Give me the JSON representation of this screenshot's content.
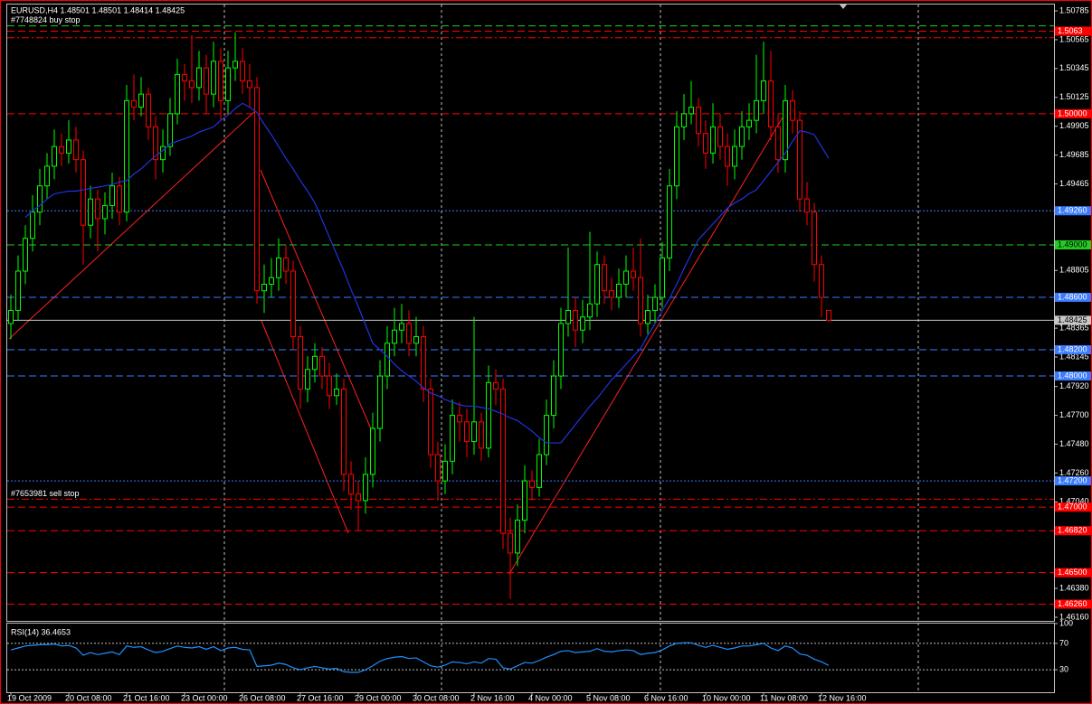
{
  "chart_data": {
    "type": "candlestick",
    "title": "EURUSD,H4 1.48501 1.48501 1.48414 1.48425",
    "categories": [
      "19 Oct 2009",
      null,
      null,
      null,
      null,
      null,
      null,
      null,
      "20 Oct 08:00",
      null,
      null,
      null,
      null,
      null,
      null,
      null,
      "21 Oct 16:00",
      null,
      null,
      null,
      null,
      null,
      null,
      null,
      "23 Oct 00:00",
      null,
      null,
      null,
      null,
      null,
      null,
      null,
      "26 Oct 08:00",
      null,
      null,
      null,
      null,
      null,
      null,
      null,
      "27 Oct 16:00",
      null,
      null,
      null,
      null,
      null,
      null,
      null,
      "29 Oct 00:00",
      null,
      null,
      null,
      null,
      null,
      null,
      null,
      "30 Oct 08:00",
      null,
      null,
      null,
      null,
      null,
      null,
      null,
      "2 Nov 16:00",
      null,
      null,
      null,
      null,
      null,
      null,
      null,
      "4 Nov 00:00",
      null,
      null,
      null,
      null,
      null,
      null,
      null,
      "5 Nov 08:00",
      null,
      null,
      null,
      null,
      null,
      null,
      null,
      "6 Nov 16:00",
      null,
      null,
      null,
      null,
      null,
      null,
      null,
      "10 Nov 00:00",
      null,
      null,
      null,
      null,
      null,
      null,
      null,
      "11 Nov 08:00",
      null,
      null,
      null,
      null,
      null,
      null,
      null,
      "12 Nov 16:00",
      null
    ],
    "up_color": "#00ff00",
    "down_color": "#ff0000",
    "candles": [
      [
        1.484,
        1.4862,
        1.4828,
        1.485
      ],
      [
        1.485,
        1.4892,
        1.4842,
        1.488
      ],
      [
        1.488,
        1.4915,
        1.487,
        1.4905
      ],
      [
        1.4905,
        1.4938,
        1.4895,
        1.4925
      ],
      [
        1.4925,
        1.4958,
        1.4915,
        1.4945
      ],
      [
        1.4945,
        1.497,
        1.4935,
        1.496
      ],
      [
        1.496,
        1.4988,
        1.495,
        1.4975
      ],
      [
        1.4975,
        1.4985,
        1.496,
        1.497
      ],
      [
        1.497,
        1.4995,
        1.4962,
        1.498
      ],
      [
        1.498,
        1.499,
        1.4955,
        1.4965
      ],
      [
        1.4965,
        1.4972,
        1.4885,
        1.4915
      ],
      [
        1.4915,
        1.4945,
        1.4905,
        1.4935
      ],
      [
        1.4935,
        1.4942,
        1.4895,
        1.492
      ],
      [
        1.492,
        1.494,
        1.4908,
        1.493
      ],
      [
        1.493,
        1.4955,
        1.492,
        1.4945
      ],
      [
        1.4945,
        1.4952,
        1.4915,
        1.4925
      ],
      [
        1.4925,
        1.5022,
        1.4918,
        1.501
      ],
      [
        1.501,
        1.503,
        1.4995,
        1.5005
      ],
      [
        1.5005,
        1.5028,
        1.4998,
        1.5015
      ],
      [
        1.5015,
        1.502,
        1.498,
        1.499
      ],
      [
        1.499,
        1.4998,
        1.495,
        1.4965
      ],
      [
        1.4965,
        1.4988,
        1.4955,
        1.4975
      ],
      [
        1.4975,
        1.5012,
        1.4968,
        1.5
      ],
      [
        1.5,
        1.5042,
        1.4992,
        1.503
      ],
      [
        1.503,
        1.5038,
        1.501,
        1.5025
      ],
      [
        1.5025,
        1.506,
        1.5008,
        1.502
      ],
      [
        1.502,
        1.5048,
        1.501,
        1.5035
      ],
      [
        1.5035,
        1.5045,
        1.5,
        1.5015
      ],
      [
        1.5015,
        1.5055,
        1.5005,
        1.504
      ],
      [
        1.504,
        1.505,
        1.4995,
        1.501
      ],
      [
        1.501,
        1.5048,
        1.5,
        1.5035
      ],
      [
        1.5035,
        1.5062,
        1.5025,
        1.504
      ],
      [
        1.504,
        1.505,
        1.5015,
        1.5025
      ],
      [
        1.5025,
        1.5038,
        1.5005,
        1.502
      ],
      [
        1.502,
        1.5028,
        1.4855,
        1.4865
      ],
      [
        1.4865,
        1.4885,
        1.4848,
        1.487
      ],
      [
        1.487,
        1.489,
        1.486,
        1.4875
      ],
      [
        1.4875,
        1.4905,
        1.4865,
        1.489
      ],
      [
        1.489,
        1.49,
        1.487,
        1.488
      ],
      [
        1.488,
        1.4888,
        1.482,
        1.483
      ],
      [
        1.483,
        1.4838,
        1.4775,
        1.479
      ],
      [
        1.479,
        1.4815,
        1.478,
        1.4805
      ],
      [
        1.4805,
        1.4825,
        1.4795,
        1.4815
      ],
      [
        1.4815,
        1.4822,
        1.479,
        1.48
      ],
      [
        1.48,
        1.481,
        1.4775,
        1.4785
      ],
      [
        1.4785,
        1.4802,
        1.4778,
        1.479
      ],
      [
        1.479,
        1.4798,
        1.4712,
        1.4725
      ],
      [
        1.4725,
        1.4735,
        1.4698,
        1.471
      ],
      [
        1.471,
        1.472,
        1.4682,
        1.4705
      ],
      [
        1.4705,
        1.4738,
        1.4695,
        1.4725
      ],
      [
        1.4725,
        1.4772,
        1.4715,
        1.476
      ],
      [
        1.476,
        1.4812,
        1.475,
        1.48
      ],
      [
        1.48,
        1.4838,
        1.479,
        1.4825
      ],
      [
        1.4825,
        1.4852,
        1.4815,
        1.4835
      ],
      [
        1.4835,
        1.4855,
        1.4825,
        1.484
      ],
      [
        1.484,
        1.485,
        1.4815,
        1.4825
      ],
      [
        1.4825,
        1.4845,
        1.4815,
        1.483
      ],
      [
        1.483,
        1.4838,
        1.478,
        1.479
      ],
      [
        1.479,
        1.4798,
        1.473,
        1.474
      ],
      [
        1.474,
        1.475,
        1.4705,
        1.472
      ],
      [
        1.472,
        1.4748,
        1.471,
        1.4735
      ],
      [
        1.4735,
        1.4782,
        1.4725,
        1.477
      ],
      [
        1.477,
        1.478,
        1.475,
        1.4765
      ],
      [
        1.4765,
        1.4775,
        1.4738,
        1.475
      ],
      [
        1.475,
        1.4845,
        1.474,
        1.4765
      ],
      [
        1.4765,
        1.4772,
        1.4735,
        1.4745
      ],
      [
        1.4745,
        1.4808,
        1.4738,
        1.4795
      ],
      [
        1.4795,
        1.4805,
        1.4778,
        1.479
      ],
      [
        1.479,
        1.4798,
        1.4668,
        1.468
      ],
      [
        1.468,
        1.4692,
        1.463,
        1.4665
      ],
      [
        1.4665,
        1.4702,
        1.4655,
        1.469
      ],
      [
        1.469,
        1.4732,
        1.468,
        1.472
      ],
      [
        1.472,
        1.4728,
        1.4705,
        1.4715
      ],
      [
        1.4715,
        1.4752,
        1.4708,
        1.474
      ],
      [
        1.474,
        1.4782,
        1.4732,
        1.477
      ],
      [
        1.477,
        1.4812,
        1.476,
        1.48
      ],
      [
        1.48,
        1.4852,
        1.479,
        1.484
      ],
      [
        1.484,
        1.4898,
        1.483,
        1.485
      ],
      [
        1.485,
        1.486,
        1.4822,
        1.4835
      ],
      [
        1.4835,
        1.4858,
        1.4825,
        1.4845
      ],
      [
        1.4845,
        1.491,
        1.4835,
        1.4855
      ],
      [
        1.4855,
        1.4895,
        1.4845,
        1.4885
      ],
      [
        1.4885,
        1.4892,
        1.4855,
        1.4865
      ],
      [
        1.4865,
        1.4875,
        1.485,
        1.486
      ],
      [
        1.486,
        1.4882,
        1.4852,
        1.487
      ],
      [
        1.487,
        1.4892,
        1.486,
        1.488
      ],
      [
        1.488,
        1.4898,
        1.4865,
        1.4875
      ],
      [
        1.4875,
        1.4905,
        1.483,
        1.484
      ],
      [
        1.484,
        1.4862,
        1.4832,
        1.485
      ],
      [
        1.485,
        1.487,
        1.484,
        1.486
      ],
      [
        1.486,
        1.4902,
        1.4852,
        1.489
      ],
      [
        1.489,
        1.4958,
        1.488,
        1.4945
      ],
      [
        1.4945,
        1.5002,
        1.4935,
        1.499
      ],
      [
        1.499,
        1.5015,
        1.498,
        1.5
      ],
      [
        1.5,
        1.5025,
        1.4992,
        1.5005
      ],
      [
        1.5005,
        1.5012,
        1.4975,
        1.4985
      ],
      [
        1.4985,
        1.4995,
        1.4958,
        1.497
      ],
      [
        1.497,
        1.5008,
        1.4962,
        1.499
      ],
      [
        1.499,
        1.5,
        1.4965,
        1.4975
      ],
      [
        1.4975,
        1.4985,
        1.4945,
        1.496
      ],
      [
        1.496,
        1.4988,
        1.495,
        1.4975
      ],
      [
        1.4975,
        1.5002,
        1.4965,
        1.499
      ],
      [
        1.499,
        1.5008,
        1.498,
        1.4995
      ],
      [
        1.4995,
        1.5045,
        1.4985,
        1.501
      ],
      [
        1.501,
        1.5055,
        1.5,
        1.5025
      ],
      [
        1.5025,
        1.5048,
        1.498,
        1.499
      ],
      [
        1.499,
        1.5,
        1.4955,
        1.4965
      ],
      [
        1.4965,
        1.5022,
        1.4955,
        1.501
      ],
      [
        1.501,
        1.5018,
        1.4985,
        1.4995
      ],
      [
        1.4995,
        1.5002,
        1.4925,
        1.4935
      ],
      [
        1.4935,
        1.4948,
        1.4915,
        1.4925
      ],
      [
        1.4925,
        1.4932,
        1.4872,
        1.4885
      ],
      [
        1.4885,
        1.4892,
        1.4845,
        1.486
      ],
      [
        1.48501,
        1.48501,
        1.48414,
        1.48425
      ]
    ],
    "ma": {
      "color": "#2233dd",
      "values": [
        null,
        null,
        1.4921,
        1.4926,
        1.493,
        1.4935,
        1.4939,
        1.494,
        1.4941,
        1.4941,
        1.4942,
        1.4943,
        1.4944,
        1.4945,
        1.4946,
        1.4948,
        1.4949,
        1.4954,
        1.4958,
        1.4963,
        1.4968,
        1.4972,
        1.4977,
        1.4979,
        1.4981,
        1.4983,
        1.4986,
        1.4988,
        1.499,
        1.4995,
        1.4999,
        1.5004,
        1.5008,
        1.5005,
        1.5001,
        1.4992,
        1.4984,
        1.4975,
        1.4966,
        1.4958,
        1.4949,
        1.4941,
        1.4932,
        1.4919,
        1.4906,
        1.4893,
        1.488,
        1.4866,
        1.4853,
        1.4839,
        1.4825,
        1.482,
        1.4815,
        1.4809,
        1.4804,
        1.48,
        1.4796,
        1.4791,
        1.4787,
        1.4785,
        1.4782,
        1.478,
        1.4778,
        1.4777,
        1.4777,
        1.4776,
        1.4775,
        1.4773,
        1.4771,
        1.4768,
        1.4766,
        1.4762,
        1.4758,
        1.4753,
        1.4749,
        1.4749,
        1.4749,
        1.4756,
        1.4763,
        1.477,
        1.4777,
        1.4783,
        1.479,
        1.4797,
        1.4803,
        1.4809,
        1.4815,
        1.4821,
        1.4831,
        1.484,
        1.485,
        1.4859,
        1.487,
        1.4882,
        1.4893,
        1.4904,
        1.491,
        1.4916,
        1.4922,
        1.4928,
        1.4932,
        1.4935,
        1.4939,
        1.4942,
        1.4949,
        1.4956,
        1.4963,
        1.497,
        1.4979,
        1.4987,
        1.4986,
        1.4984,
        1.4975,
        1.4966
      ]
    },
    "ylim": [
      1.4616,
      1.50785
    ],
    "yticks": [
      1.50785,
      1.50565,
      1.50345,
      1.50125,
      1.49905,
      1.49685,
      1.49465,
      1.48805,
      1.48365,
      1.48145,
      {
        "value": 1.4792,
        "label": "1.47920"
      },
      {
        "value": 1.477,
        "label": "1.47700"
      },
      {
        "value": 1.4748,
        "label": "1.47480"
      },
      {
        "value": 1.4726,
        "label": "1.47260"
      },
      {
        "value": 1.4704,
        "label": "1.47040"
      },
      {
        "value": 1.4638,
        "label": "1.46380"
      },
      {
        "value": 1.4616,
        "label": "1.46160"
      }
    ],
    "grid": false,
    "levels": [
      {
        "value": 1.5063,
        "label": "1.5063",
        "color": "#ff0000",
        "style": "dash"
      },
      {
        "value": 1.5058,
        "color": "#ff0000",
        "style": "dashdot"
      },
      {
        "value": 1.5,
        "label": "1.50000",
        "color": "#ff0000",
        "style": "dash"
      },
      {
        "value": 1.4926,
        "label": "1.49260",
        "color": "#3a7bff",
        "style": "dot"
      },
      {
        "value": 1.49,
        "label": "1.49000",
        "color": "#22cc22",
        "style": "dash"
      },
      {
        "value": 1.486,
        "label": "1.48600",
        "color": "#3a7bff",
        "style": "dash"
      },
      {
        "value": 1.48425,
        "label": "1.48425",
        "color": "#c8c8c8",
        "style": "solid"
      },
      {
        "value": 1.482,
        "label": "1.48200",
        "color": "#3a7bff",
        "style": "dash"
      },
      {
        "value": 1.48,
        "label": "1.48000",
        "color": "#3a7bff",
        "style": "dash"
      },
      {
        "value": 1.472,
        "label": "1.47200",
        "color": "#3a7bff",
        "style": "dot"
      },
      {
        "value": 1.47,
        "label": "1.47000",
        "color": "#ff0000",
        "style": "dash"
      },
      {
        "value": 1.4682,
        "label": "1.46820",
        "color": "#ff0000",
        "style": "dash"
      },
      {
        "value": 1.465,
        "label": "1.46500",
        "color": "#ff0000",
        "style": "dash"
      },
      {
        "value": 1.4626,
        "label": "1.46260",
        "color": "#ff0000",
        "style": "dash"
      }
    ],
    "orders": [
      {
        "label": "#7748824 buy stop",
        "value": 1.5067,
        "color": "#22cc22",
        "style": "dash"
      },
      {
        "label": "#7653981 sell stop",
        "value": 1.4706,
        "color": "#ff0000",
        "style": "dashdot"
      }
    ],
    "rsi": {
      "title": "RSI(14) 36.4653",
      "color": "#1e90ff",
      "ylim": [
        0,
        100
      ],
      "yticks": [
        100,
        70,
        30
      ],
      "levels": [
        70,
        30
      ],
      "values": [
        60,
        63,
        66,
        67,
        68,
        68,
        69,
        66,
        67,
        63,
        52,
        56,
        53,
        55,
        57,
        53,
        66,
        64,
        65,
        60,
        56,
        58,
        62,
        66,
        64,
        63,
        65,
        61,
        65,
        59,
        63,
        64,
        61,
        60,
        35,
        36,
        37,
        40,
        38,
        33,
        30,
        33,
        35,
        33,
        31,
        32,
        27,
        26,
        26,
        30,
        36,
        43,
        47,
        49,
        50,
        47,
        48,
        42,
        36,
        34,
        37,
        42,
        41,
        39,
        42,
        40,
        47,
        46,
        33,
        31,
        36,
        41,
        40,
        44,
        49,
        53,
        58,
        59,
        56,
        57,
        58,
        62,
        58,
        57,
        59,
        60,
        59,
        53,
        55,
        56,
        60,
        66,
        70,
        71,
        71,
        67,
        64,
        67,
        64,
        61,
        63,
        66,
        66,
        68,
        70,
        63,
        59,
        66,
        63,
        54,
        52,
        46,
        42,
        36.4653
      ]
    }
  }
}
